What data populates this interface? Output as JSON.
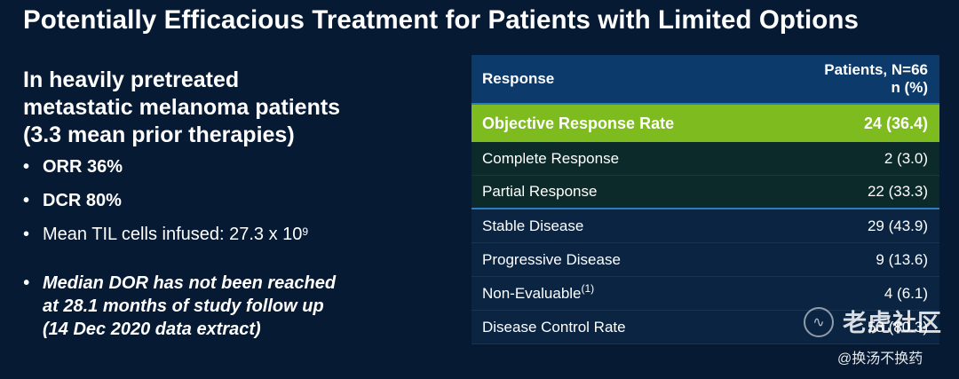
{
  "title": "Potentially Efficacious Treatment for Patients with Limited Options",
  "left": {
    "intro_lines": [
      "In heavily pretreated",
      "metastatic melanoma patients",
      "(3.3 mean prior therapies)"
    ],
    "bullet_orr": "ORR 36%",
    "bullet_dcr": "DCR 80%",
    "bullet_til_text": "Mean TIL cells infused: 27.3 x 10",
    "bullet_til_exp": "9",
    "dor_lines": [
      "Median DOR has not been reached",
      "at 28.1 months of study follow up",
      "(14 Dec 2020 data extract)"
    ]
  },
  "table": {
    "header": {
      "response": "Response",
      "patients_line1": "Patients, N=66",
      "patients_line2": "n (%)"
    },
    "orr": {
      "label": "Objective Response Rate",
      "value": "24 (36.4)"
    },
    "sub_rows": [
      {
        "label": "Complete Response",
        "value": "2 (3.0)"
      },
      {
        "label": "Partial Response",
        "value": "22 (33.3)"
      }
    ],
    "rows": [
      {
        "label": "Stable Disease",
        "value": "29 (43.9)"
      },
      {
        "label": "Progressive Disease",
        "value": "9 (13.6)"
      },
      {
        "label": "Non-Evaluable",
        "label_sup": "(1)",
        "value": "4 (6.1)"
      },
      {
        "label": "Disease Control Rate",
        "value": "53 (80.3)"
      }
    ]
  },
  "watermark": {
    "name": "老虎社区",
    "handle": "@换汤不换药"
  },
  "colors": {
    "background": "#061a33",
    "header": "#0c3a6a",
    "highlight": "#7dbb1e",
    "subrow": "#0d2a2a"
  }
}
